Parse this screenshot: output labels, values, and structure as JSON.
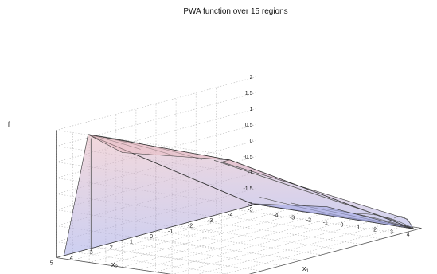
{
  "chart_data": {
    "type": "surface3d",
    "title": "PWA function over 15 regions",
    "xlabel": "x",
    "xlabel_sub": "1",
    "ylabel": "x",
    "ylabel_sub": "2",
    "zlabel": "f",
    "xlim": [
      -5,
      5
    ],
    "ylim": [
      -5,
      5
    ],
    "zlim": [
      -2,
      2
    ],
    "x_ticks": [
      -4,
      -3,
      -2,
      -1,
      0,
      1,
      2,
      3,
      4
    ],
    "y_ticks": [
      -5,
      -4,
      -3,
      -2,
      -1,
      0,
      1,
      2,
      3,
      4,
      5
    ],
    "z_ticks": [
      -2,
      -1.5,
      -1,
      -0.5,
      0,
      0.5,
      1,
      1.5,
      2
    ],
    "grid": true,
    "regions": 15,
    "surface_colors": {
      "high": "#e8b8bf",
      "low": "#a3a8e6",
      "edge": "#333333"
    }
  }
}
